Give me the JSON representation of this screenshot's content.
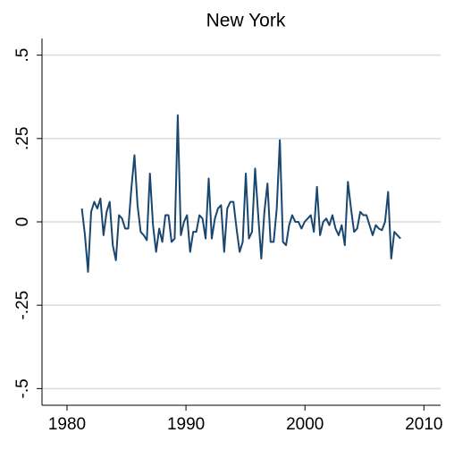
{
  "chart_data": {
    "type": "line",
    "title": "New York",
    "x": [
      1981.25,
      1981.51,
      1981.77,
      1982.03,
      1982.29,
      1982.55,
      1982.81,
      1983.07,
      1983.33,
      1983.59,
      1983.85,
      1984.11,
      1984.37,
      1984.63,
      1984.89,
      1985.15,
      1985.41,
      1985.67,
      1985.93,
      1986.19,
      1986.45,
      1986.71,
      1986.97,
      1987.23,
      1987.49,
      1987.75,
      1988.01,
      1988.27,
      1988.53,
      1988.79,
      1989.05,
      1989.31,
      1989.57,
      1989.83,
      1990.09,
      1990.35,
      1990.61,
      1990.87,
      1991.13,
      1991.39,
      1991.65,
      1991.91,
      1992.17,
      1992.43,
      1992.69,
      1992.95,
      1993.21,
      1993.47,
      1993.73,
      1993.99,
      1994.25,
      1994.51,
      1994.77,
      1995.03,
      1995.29,
      1995.55,
      1995.81,
      1996.07,
      1996.33,
      1996.59,
      1996.85,
      1997.11,
      1997.37,
      1997.63,
      1997.89,
      1998.15,
      1998.41,
      1998.67,
      1998.93,
      1999.19,
      1999.45,
      1999.71,
      1999.97,
      2000.23,
      2000.49,
      2000.75,
      2001.01,
      2001.27,
      2001.53,
      2001.79,
      2002.05,
      2002.31,
      2002.57,
      2002.83,
      2003.09,
      2003.35,
      2003.61,
      2003.87,
      2004.13,
      2004.39,
      2004.65,
      2004.91,
      2005.17,
      2005.43,
      2005.69,
      2005.95,
      2006.21,
      2006.47,
      2006.73,
      2006.99,
      2007.25,
      2007.51,
      2007.77,
      2008.03
    ],
    "series": [
      {
        "color": "#1a476f",
        "values": [
          0.04,
          -0.04,
          -0.15,
          0.03,
          0.06,
          0.04,
          0.07,
          -0.04,
          0.03,
          0.06,
          -0.07,
          -0.115,
          0.02,
          0.01,
          -0.02,
          -0.02,
          0.1,
          0.2,
          0.05,
          -0.03,
          -0.04,
          -0.055,
          0.145,
          -0.01,
          -0.09,
          -0.02,
          -0.06,
          0.02,
          0.02,
          -0.06,
          -0.05,
          0.32,
          -0.04,
          0.0,
          0.02,
          -0.09,
          -0.03,
          -0.03,
          0.02,
          0.01,
          -0.05,
          0.13,
          -0.05,
          0.01,
          0.04,
          0.05,
          -0.09,
          0.04,
          0.06,
          0.06,
          -0.02,
          -0.09,
          -0.06,
          0.145,
          -0.05,
          -0.03,
          0.16,
          0.02,
          -0.11,
          0.03,
          0.115,
          -0.06,
          -0.06,
          0.04,
          0.245,
          -0.06,
          -0.07,
          -0.01,
          0.02,
          0.0,
          0.0,
          -0.02,
          0.0,
          0.01,
          0.02,
          -0.03,
          0.105,
          -0.04,
          0.0,
          0.01,
          -0.01,
          0.02,
          -0.02,
          -0.04,
          -0.01,
          -0.07,
          0.12,
          0.04,
          -0.03,
          -0.02,
          0.03,
          0.02,
          0.02,
          -0.01,
          -0.04,
          -0.01,
          -0.02,
          -0.025,
          0.0,
          0.09,
          -0.11,
          -0.03,
          -0.04,
          -0.05
        ]
      }
    ],
    "xlim": [
      1977.9,
      2011.4
    ],
    "xticks": [
      1980,
      1990,
      2000,
      2010
    ],
    "ylim": [
      -0.55,
      0.55
    ],
    "yticks": [
      {
        "value": -0.5,
        "label": "-.5"
      },
      {
        "value": -0.25,
        "label": "-.25"
      },
      0,
      {
        "value": 0.25,
        "label": ".25"
      },
      {
        "value": 0.5,
        "label": ".5"
      }
    ],
    "grid": true
  }
}
